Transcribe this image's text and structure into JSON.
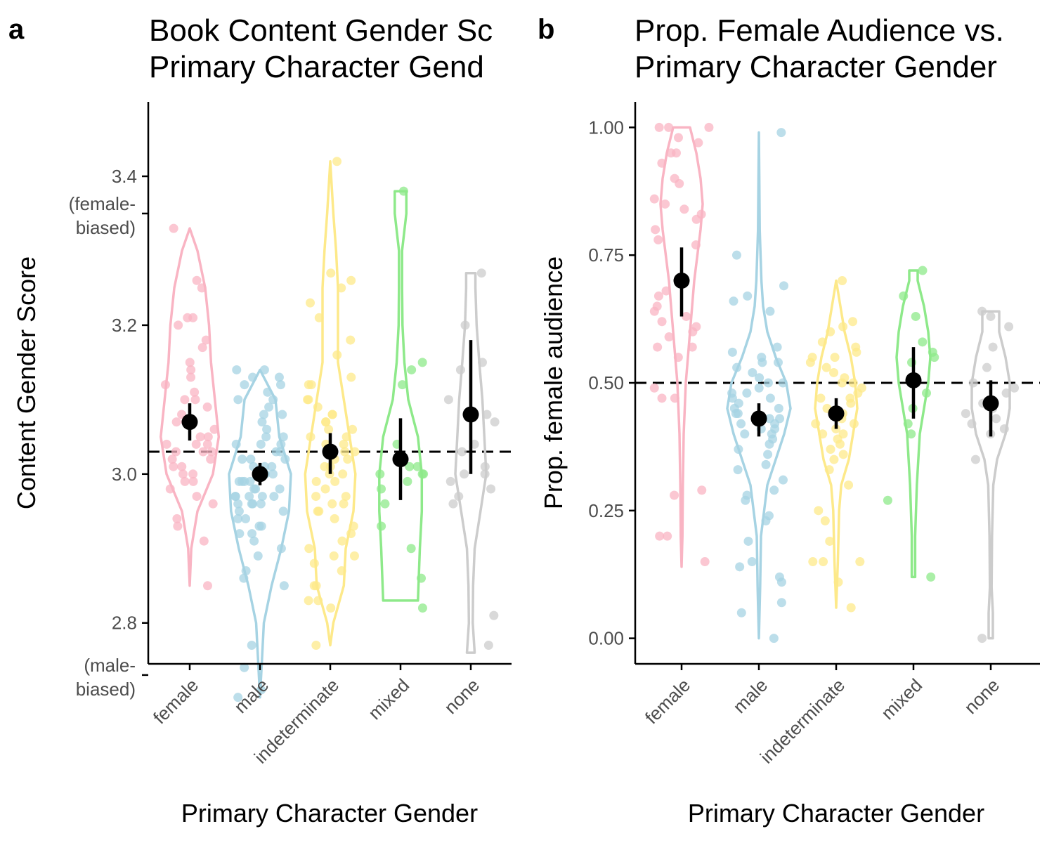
{
  "chart_data": [
    {
      "panel_label": "a",
      "type": "violin",
      "title": "Book Content Gender Score vs. Primary Character Gender",
      "title_visible_lines": [
        "Book Content Gender Sc",
        "Primary Character Gend"
      ],
      "xlabel": "Primary Character Gender",
      "ylabel": "Content Gender Score",
      "ylim": [
        2.745,
        3.5
      ],
      "yticks": [
        {
          "value": 3.4,
          "label": "3.4"
        },
        {
          "value": 3.2,
          "label": "3.2"
        },
        {
          "value": 3.0,
          "label": "3.0"
        },
        {
          "value": 2.8,
          "label": "2.8"
        }
      ],
      "extra_ticks": [
        {
          "value": 3.35,
          "lines": [
            "(female-",
            "biased)"
          ]
        },
        {
          "value": 2.73,
          "lines": [
            "(male-",
            "biased)"
          ]
        }
      ],
      "reference_line": 3.03,
      "categories": [
        "female",
        "male",
        "indeterminate",
        "mixed",
        "none"
      ],
      "colors": [
        "#f9b4c3",
        "#a6d3e3",
        "#fde98a",
        "#8ee98a",
        "#cccccc"
      ],
      "means": [
        3.07,
        3.0,
        3.03,
        3.02,
        3.08
      ],
      "ci_lower": [
        3.045,
        2.985,
        3.0,
        2.965,
        3.0
      ],
      "ci_upper": [
        3.095,
        3.015,
        3.055,
        3.075,
        3.18
      ],
      "violins": [
        {
          "y": [
            2.85,
            2.9,
            2.95,
            3.0,
            3.05,
            3.1,
            3.15,
            3.2,
            3.25,
            3.3,
            3.33
          ],
          "halfwidth": [
            0.0,
            0.04,
            0.2,
            0.6,
            0.75,
            0.65,
            0.55,
            0.5,
            0.4,
            0.2,
            0.0
          ]
        },
        {
          "y": [
            2.7,
            2.75,
            2.8,
            2.85,
            2.9,
            2.95,
            3.0,
            3.05,
            3.1,
            3.14
          ],
          "halfwidth": [
            0.0,
            0.05,
            0.1,
            0.3,
            0.55,
            0.75,
            0.8,
            0.5,
            0.4,
            0.0
          ]
        },
        {
          "y": [
            2.77,
            2.8,
            2.85,
            2.9,
            2.95,
            3.0,
            3.05,
            3.1,
            3.15,
            3.2,
            3.25,
            3.3,
            3.35,
            3.42
          ],
          "halfwidth": [
            0.0,
            0.08,
            0.35,
            0.4,
            0.6,
            0.65,
            0.5,
            0.35,
            0.2,
            0.2,
            0.2,
            0.15,
            0.08,
            0.0
          ]
        },
        {
          "y": [
            2.83,
            2.9,
            2.95,
            3.0,
            3.05,
            3.1,
            3.15,
            3.2,
            3.25,
            3.3,
            3.35,
            3.38
          ],
          "halfwidth": [
            0.45,
            0.5,
            0.55,
            0.55,
            0.45,
            0.2,
            0.1,
            0.05,
            0.04,
            0.04,
            0.15,
            0.15
          ]
        },
        {
          "y": [
            2.76,
            2.8,
            2.85,
            2.9,
            2.95,
            3.0,
            3.05,
            3.1,
            3.15,
            3.2,
            3.25,
            3.27
          ],
          "halfwidth": [
            0.1,
            0.05,
            0.06,
            0.1,
            0.25,
            0.4,
            0.35,
            0.3,
            0.22,
            0.15,
            0.12,
            0.12
          ]
        }
      ],
      "points": [
        [
          3.33,
          3.25,
          3.21,
          3.21,
          3.2,
          3.18,
          3.17,
          3.15,
          3.14,
          3.13,
          3.12,
          3.11,
          3.1,
          3.1,
          3.09,
          3.08,
          3.07,
          3.07,
          3.06,
          3.05,
          3.05,
          3.04,
          3.04,
          3.04,
          3.03,
          3.03,
          3.03,
          3.02,
          3.02,
          3.01,
          3.01,
          3.0,
          3.0,
          2.99,
          2.99,
          2.98,
          2.97,
          2.96,
          2.94,
          2.93,
          2.91,
          2.85,
          3.26
        ],
        [
          3.14,
          3.14,
          3.13,
          3.13,
          3.12,
          3.12,
          3.11,
          3.1,
          3.1,
          3.09,
          3.08,
          3.08,
          3.07,
          3.06,
          3.05,
          3.05,
          3.04,
          3.04,
          3.03,
          3.03,
          3.02,
          3.02,
          3.02,
          3.01,
          3.01,
          3.0,
          3.0,
          3.0,
          2.99,
          2.99,
          2.99,
          2.98,
          2.98,
          2.98,
          2.97,
          2.97,
          2.97,
          2.97,
          2.96,
          2.96,
          2.96,
          2.96,
          2.95,
          2.95,
          2.94,
          2.94,
          2.93,
          2.93,
          2.92,
          2.92,
          2.91,
          2.9,
          2.89,
          2.87,
          2.86,
          2.85,
          2.77,
          2.74,
          2.71,
          2.7,
          3.04,
          3.01,
          2.99,
          2.97
        ],
        [
          3.42,
          3.27,
          3.26,
          3.25,
          3.23,
          3.21,
          3.18,
          3.16,
          3.13,
          3.12,
          3.12,
          3.1,
          3.1,
          3.09,
          3.08,
          3.08,
          3.07,
          3.07,
          3.06,
          3.05,
          3.05,
          3.04,
          3.03,
          3.03,
          3.02,
          3.02,
          3.01,
          3.01,
          3.0,
          3.0,
          2.99,
          2.99,
          2.98,
          2.97,
          2.97,
          2.96,
          2.96,
          2.95,
          2.95,
          2.94,
          2.93,
          2.92,
          2.91,
          2.9,
          2.89,
          2.89,
          2.88,
          2.87,
          2.85,
          2.85,
          2.83,
          2.83,
          2.82,
          2.77,
          3.06,
          3.04
        ],
        [
          3.38,
          3.15,
          3.14,
          3.12,
          3.04,
          3.01,
          3.01,
          3.0,
          3.0,
          3.0,
          2.99,
          2.98,
          2.96,
          2.93,
          2.9,
          2.86,
          2.82
        ],
        [
          3.27,
          3.2,
          3.15,
          3.14,
          3.1,
          3.08,
          3.07,
          3.04,
          3.03,
          3.01,
          3.0,
          3.0,
          2.99,
          2.98,
          2.97,
          2.96,
          2.81,
          2.77
        ]
      ]
    },
    {
      "panel_label": "b",
      "type": "violin",
      "title": "Prop. Female Audience vs. Primary Character Gender",
      "title_visible_lines": [
        "Prop. Female Audience vs.",
        "Primary Character Gender"
      ],
      "xlabel": "Primary Character Gender",
      "ylabel": "Prop. female audience",
      "ylim": [
        -0.05,
        1.05
      ],
      "yticks": [
        {
          "value": 1.0,
          "label": "1.00"
        },
        {
          "value": 0.75,
          "label": "0.75"
        },
        {
          "value": 0.5,
          "label": "0.50"
        },
        {
          "value": 0.25,
          "label": "0.25"
        },
        {
          "value": 0.0,
          "label": "0.00"
        }
      ],
      "extra_ticks": [],
      "reference_line": 0.5,
      "categories": [
        "female",
        "male",
        "indeterminate",
        "mixed",
        "none"
      ],
      "colors": [
        "#f9b4c3",
        "#a6d3e3",
        "#fde98a",
        "#8ee98a",
        "#cccccc"
      ],
      "means": [
        0.7,
        0.43,
        0.44,
        0.505,
        0.46
      ],
      "ci_lower": [
        0.63,
        0.395,
        0.41,
        0.43,
        0.395
      ],
      "ci_upper": [
        0.765,
        0.46,
        0.47,
        0.57,
        0.505
      ],
      "violins": [
        {
          "y": [
            0.14,
            0.2,
            0.3,
            0.4,
            0.5,
            0.6,
            0.7,
            0.8,
            0.85,
            0.9,
            0.95,
            1.0
          ],
          "halfwidth": [
            0.0,
            0.02,
            0.03,
            0.05,
            0.1,
            0.2,
            0.3,
            0.45,
            0.5,
            0.45,
            0.35,
            0.2
          ]
        },
        {
          "y": [
            0.0,
            0.1,
            0.15,
            0.2,
            0.3,
            0.4,
            0.45,
            0.5,
            0.55,
            0.6,
            0.65,
            0.7,
            0.75,
            0.8,
            0.9,
            0.99
          ],
          "halfwidth": [
            0.0,
            0.03,
            0.04,
            0.05,
            0.2,
            0.6,
            0.75,
            0.65,
            0.4,
            0.2,
            0.1,
            0.06,
            0.04,
            0.02,
            0.01,
            0.0
          ]
        },
        {
          "y": [
            0.06,
            0.15,
            0.25,
            0.3,
            0.35,
            0.4,
            0.45,
            0.5,
            0.55,
            0.6,
            0.65,
            0.7
          ],
          "halfwidth": [
            0.0,
            0.04,
            0.07,
            0.12,
            0.3,
            0.4,
            0.5,
            0.45,
            0.35,
            0.2,
            0.1,
            0.0
          ]
        },
        {
          "y": [
            0.12,
            0.2,
            0.3,
            0.4,
            0.45,
            0.5,
            0.55,
            0.6,
            0.65,
            0.7,
            0.72
          ],
          "halfwidth": [
            0.04,
            0.04,
            0.08,
            0.15,
            0.25,
            0.35,
            0.4,
            0.35,
            0.25,
            0.1,
            0.1
          ]
        },
        {
          "y": [
            0.0,
            0.05,
            0.1,
            0.2,
            0.3,
            0.35,
            0.4,
            0.45,
            0.5,
            0.55,
            0.6,
            0.64
          ],
          "halfwidth": [
            0.05,
            0.05,
            0.02,
            0.03,
            0.06,
            0.15,
            0.35,
            0.45,
            0.45,
            0.35,
            0.2,
            0.2
          ]
        }
      ],
      "points": [
        [
          1.0,
          1.0,
          1.0,
          0.98,
          0.97,
          0.95,
          0.95,
          0.93,
          0.9,
          0.89,
          0.86,
          0.85,
          0.84,
          0.83,
          0.82,
          0.8,
          0.78,
          0.77,
          0.7,
          0.68,
          0.67,
          0.65,
          0.64,
          0.63,
          0.62,
          0.61,
          0.6,
          0.59,
          0.57,
          0.57,
          0.55,
          0.49,
          0.47,
          0.47,
          0.29,
          0.28,
          0.2,
          0.2,
          0.15
        ],
        [
          0.99,
          0.75,
          0.69,
          0.67,
          0.66,
          0.64,
          0.57,
          0.56,
          0.55,
          0.54,
          0.54,
          0.53,
          0.52,
          0.51,
          0.5,
          0.5,
          0.49,
          0.48,
          0.48,
          0.47,
          0.47,
          0.46,
          0.45,
          0.45,
          0.44,
          0.44,
          0.43,
          0.43,
          0.42,
          0.42,
          0.41,
          0.41,
          0.4,
          0.4,
          0.39,
          0.38,
          0.37,
          0.36,
          0.34,
          0.33,
          0.31,
          0.29,
          0.28,
          0.27,
          0.24,
          0.23,
          0.19,
          0.15,
          0.14,
          0.12,
          0.11,
          0.07,
          0.05,
          0.0
        ],
        [
          0.7,
          0.62,
          0.61,
          0.6,
          0.58,
          0.57,
          0.56,
          0.55,
          0.55,
          0.54,
          0.53,
          0.52,
          0.51,
          0.5,
          0.5,
          0.49,
          0.48,
          0.47,
          0.47,
          0.46,
          0.45,
          0.44,
          0.43,
          0.42,
          0.42,
          0.41,
          0.4,
          0.4,
          0.39,
          0.38,
          0.37,
          0.36,
          0.35,
          0.33,
          0.3,
          0.25,
          0.23,
          0.19,
          0.15,
          0.15,
          0.15,
          0.11,
          0.06
        ],
        [
          0.72,
          0.67,
          0.63,
          0.58,
          0.56,
          0.55,
          0.54,
          0.5,
          0.48,
          0.45,
          0.42,
          0.4,
          0.27,
          0.12
        ],
        [
          0.64,
          0.63,
          0.61,
          0.57,
          0.53,
          0.5,
          0.49,
          0.48,
          0.46,
          0.45,
          0.44,
          0.43,
          0.42,
          0.41,
          0.4,
          0.35,
          0.0
        ]
      ]
    }
  ]
}
